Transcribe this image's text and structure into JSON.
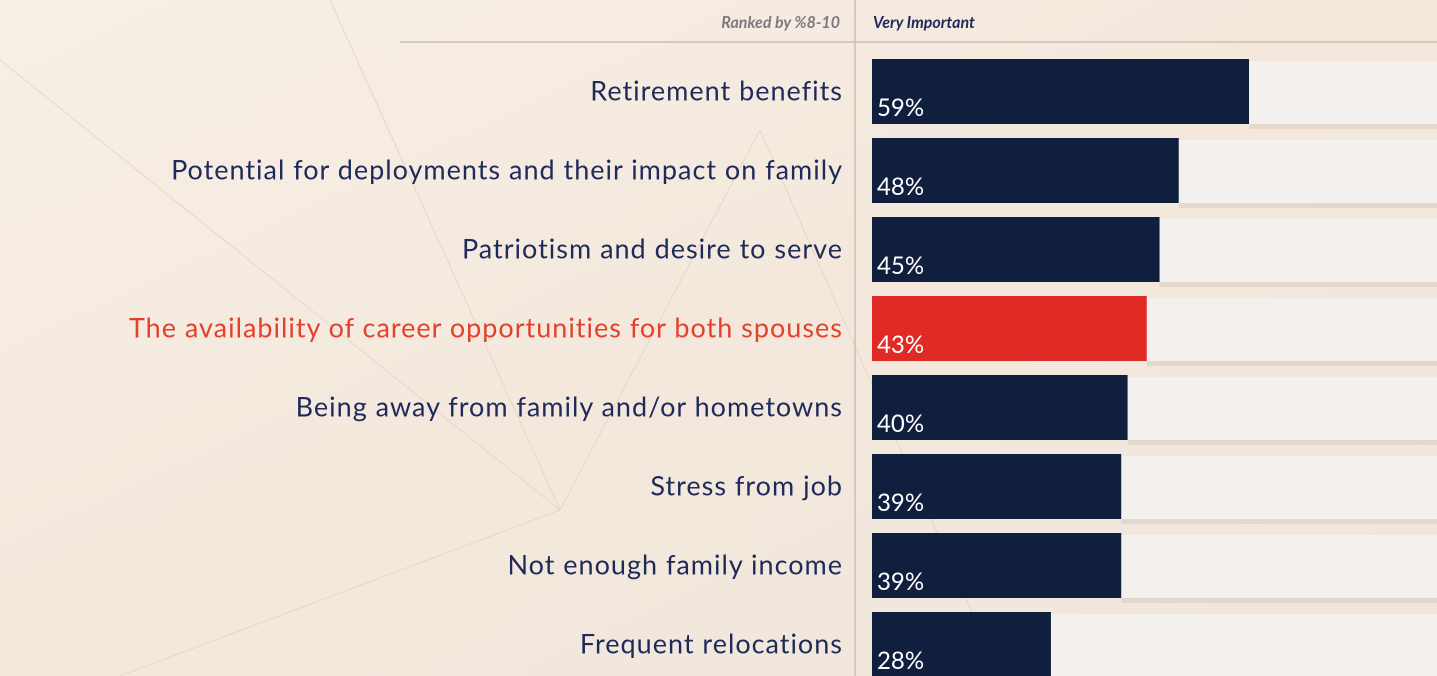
{
  "chart_data": {
    "type": "bar",
    "orientation": "horizontal",
    "header_left": "Ranked by %8-10",
    "header_right": "Very Important",
    "categories": [
      "Retirement benefits",
      "Potential for deployments and their impact on family",
      "Patriotism and desire to serve",
      "The availability of career opportunities for both spouses",
      "Being away from family and/or hometowns",
      "Stress from job",
      "Not enough family income",
      "Frequent relocations"
    ],
    "values": [
      59,
      48,
      45,
      43,
      40,
      39,
      39,
      28
    ],
    "value_labels": [
      "59%",
      "48%",
      "45%",
      "43%",
      "40%",
      "39%",
      "39%",
      "28%"
    ],
    "colors": [
      "#0f1f3d",
      "#0f1f3d",
      "#0f1f3d",
      "#e02a26",
      "#0f1f3d",
      "#0f1f3d",
      "#0f1f3d",
      "#0f1f3d"
    ]
  }
}
